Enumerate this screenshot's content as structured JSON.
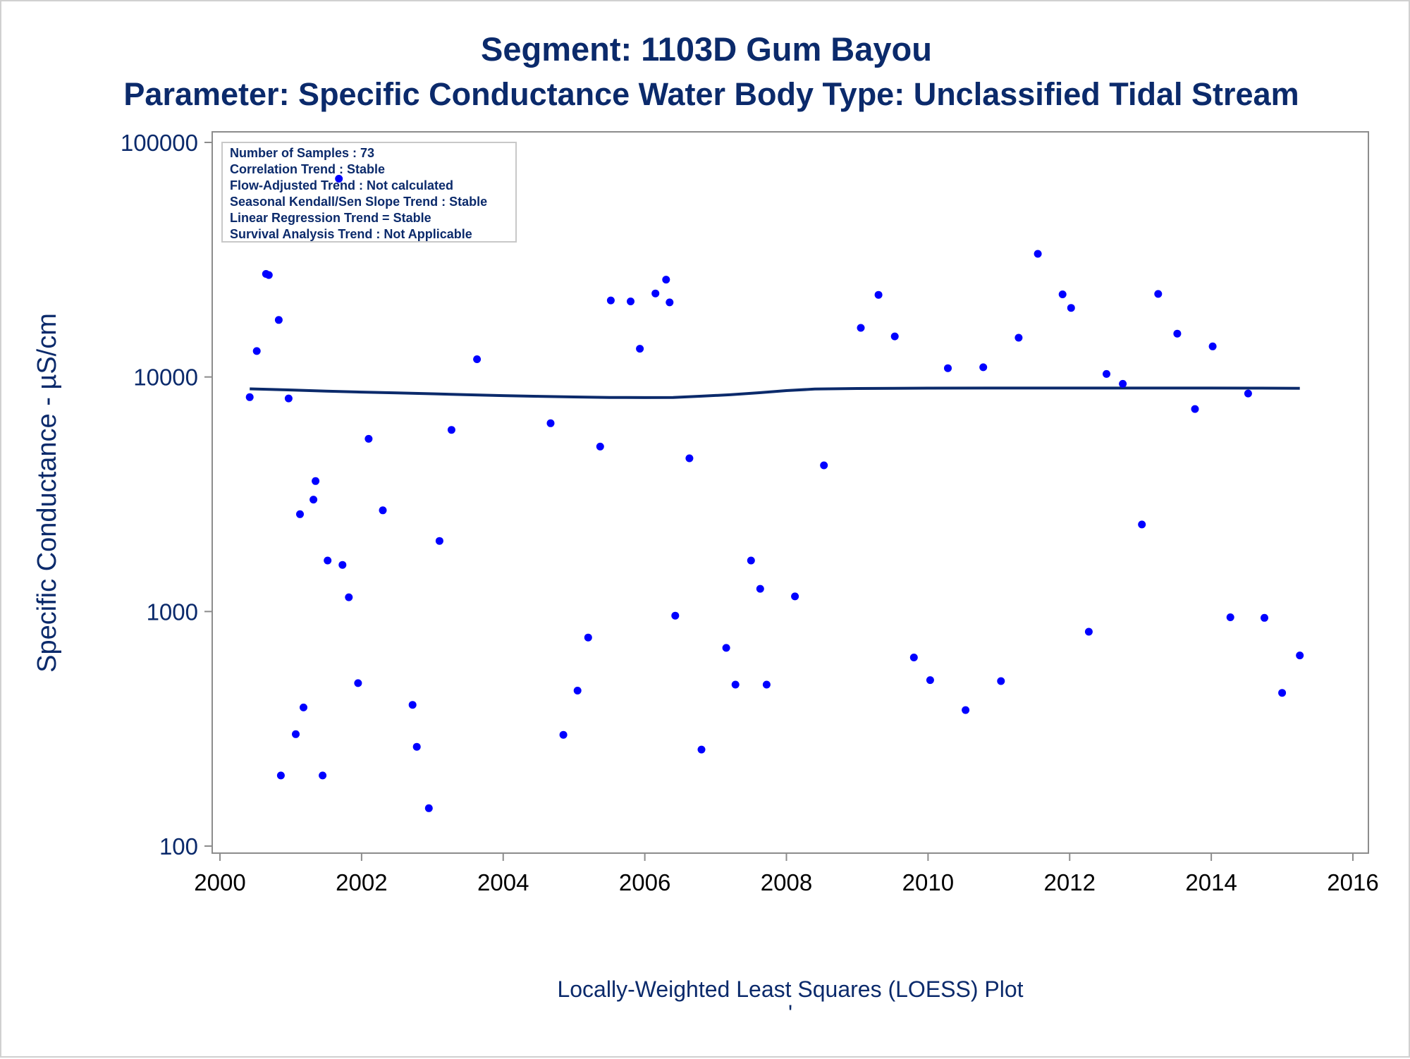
{
  "titles": {
    "line1": "Segment: 1103D  Gum Bayou",
    "line2": "Parameter: Specific Conductance   Water Body Type: Unclassified Tidal Stream"
  },
  "stats_box": {
    "lines": [
      "Number of Samples : 73",
      "Correlation Trend : Stable",
      "Flow-Adjusted Trend : Not calculated",
      "Seasonal Kendall/Sen Slope Trend : Stable",
      "Linear Regression Trend = Stable",
      "Survival Analysis Trend : Not Applicable"
    ]
  },
  "footnote": "Locally-Weighted Least Squares (LOESS) Plot",
  "footnote_mark": "'",
  "colors": {
    "title": "#0b2a6b",
    "points": "#0000ff",
    "loess": "#0b2a6b",
    "axis": "#8c8c8c"
  },
  "chart_data": {
    "type": "scatter",
    "ylabel": "Specific Conductance -  µS/cm",
    "xlabel": "",
    "xlim": [
      2000,
      2016
    ],
    "ylim": [
      100,
      100000
    ],
    "y_scale": "log",
    "x_ticks": [
      2000,
      2002,
      2004,
      2006,
      2008,
      2010,
      2012,
      2014,
      2016
    ],
    "y_ticks": [
      100,
      1000,
      10000,
      100000
    ],
    "grid": false,
    "series": [
      {
        "marker": "circle",
        "points": [
          {
            "x": 2000.42,
            "y": 8200
          },
          {
            "x": 2000.52,
            "y": 12900
          },
          {
            "x": 2000.65,
            "y": 27500
          },
          {
            "x": 2000.69,
            "y": 27200
          },
          {
            "x": 2000.83,
            "y": 17500
          },
          {
            "x": 2000.86,
            "y": 200
          },
          {
            "x": 2000.97,
            "y": 8100
          },
          {
            "x": 2001.07,
            "y": 300
          },
          {
            "x": 2001.13,
            "y": 2600
          },
          {
            "x": 2001.18,
            "y": 390
          },
          {
            "x": 2001.32,
            "y": 3000
          },
          {
            "x": 2001.35,
            "y": 3600
          },
          {
            "x": 2001.45,
            "y": 200
          },
          {
            "x": 2001.52,
            "y": 1650
          },
          {
            "x": 2001.68,
            "y": 70000
          },
          {
            "x": 2001.73,
            "y": 1580
          },
          {
            "x": 2001.82,
            "y": 1150
          },
          {
            "x": 2001.95,
            "y": 495
          },
          {
            "x": 2002.1,
            "y": 5450
          },
          {
            "x": 2002.3,
            "y": 2700
          },
          {
            "x": 2002.72,
            "y": 400
          },
          {
            "x": 2002.78,
            "y": 265
          },
          {
            "x": 2002.95,
            "y": 145
          },
          {
            "x": 2003.1,
            "y": 2000
          },
          {
            "x": 2003.27,
            "y": 5950
          },
          {
            "x": 2003.63,
            "y": 11900
          },
          {
            "x": 2004.67,
            "y": 6350
          },
          {
            "x": 2004.85,
            "y": 298
          },
          {
            "x": 2005.05,
            "y": 460
          },
          {
            "x": 2005.2,
            "y": 775
          },
          {
            "x": 2005.37,
            "y": 5050
          },
          {
            "x": 2005.52,
            "y": 21200
          },
          {
            "x": 2005.8,
            "y": 21000
          },
          {
            "x": 2005.93,
            "y": 13200
          },
          {
            "x": 2006.15,
            "y": 22700
          },
          {
            "x": 2006.3,
            "y": 26000
          },
          {
            "x": 2006.35,
            "y": 20800
          },
          {
            "x": 2006.43,
            "y": 960
          },
          {
            "x": 2006.63,
            "y": 4500
          },
          {
            "x": 2006.8,
            "y": 258
          },
          {
            "x": 2007.15,
            "y": 700
          },
          {
            "x": 2007.28,
            "y": 488
          },
          {
            "x": 2007.5,
            "y": 1650
          },
          {
            "x": 2007.63,
            "y": 1250
          },
          {
            "x": 2007.72,
            "y": 488
          },
          {
            "x": 2008.12,
            "y": 1160
          },
          {
            "x": 2008.53,
            "y": 4200
          },
          {
            "x": 2009.05,
            "y": 16200
          },
          {
            "x": 2009.3,
            "y": 22400
          },
          {
            "x": 2009.53,
            "y": 14900
          },
          {
            "x": 2009.8,
            "y": 637
          },
          {
            "x": 2010.03,
            "y": 510
          },
          {
            "x": 2010.28,
            "y": 10900
          },
          {
            "x": 2010.53,
            "y": 380
          },
          {
            "x": 2010.78,
            "y": 11000
          },
          {
            "x": 2011.03,
            "y": 505
          },
          {
            "x": 2011.28,
            "y": 14700
          },
          {
            "x": 2011.55,
            "y": 33500
          },
          {
            "x": 2011.9,
            "y": 22500
          },
          {
            "x": 2012.02,
            "y": 19700
          },
          {
            "x": 2012.27,
            "y": 820
          },
          {
            "x": 2012.52,
            "y": 10300
          },
          {
            "x": 2012.75,
            "y": 9350
          },
          {
            "x": 2013.02,
            "y": 2350
          },
          {
            "x": 2013.25,
            "y": 22600
          },
          {
            "x": 2013.52,
            "y": 15300
          },
          {
            "x": 2013.77,
            "y": 7300
          },
          {
            "x": 2014.02,
            "y": 13500
          },
          {
            "x": 2014.27,
            "y": 945
          },
          {
            "x": 2014.52,
            "y": 8500
          },
          {
            "x": 2014.75,
            "y": 940
          },
          {
            "x": 2015.0,
            "y": 450
          },
          {
            "x": 2015.25,
            "y": 650
          }
        ]
      },
      {
        "marker": "line",
        "points": [
          {
            "x": 2000.42,
            "y": 8900
          },
          {
            "x": 2000.7,
            "y": 8850
          },
          {
            "x": 2001.0,
            "y": 8800
          },
          {
            "x": 2001.5,
            "y": 8700
          },
          {
            "x": 2002.0,
            "y": 8620
          },
          {
            "x": 2002.5,
            "y": 8550
          },
          {
            "x": 2003.0,
            "y": 8480
          },
          {
            "x": 2003.5,
            "y": 8400
          },
          {
            "x": 2004.0,
            "y": 8330
          },
          {
            "x": 2004.5,
            "y": 8270
          },
          {
            "x": 2005.0,
            "y": 8220
          },
          {
            "x": 2005.5,
            "y": 8180
          },
          {
            "x": 2006.0,
            "y": 8170
          },
          {
            "x": 2006.4,
            "y": 8180
          },
          {
            "x": 2006.8,
            "y": 8280
          },
          {
            "x": 2007.2,
            "y": 8400
          },
          {
            "x": 2007.6,
            "y": 8560
          },
          {
            "x": 2008.0,
            "y": 8750
          },
          {
            "x": 2008.4,
            "y": 8880
          },
          {
            "x": 2009.0,
            "y": 8930
          },
          {
            "x": 2010.0,
            "y": 8960
          },
          {
            "x": 2011.0,
            "y": 8970
          },
          {
            "x": 2012.0,
            "y": 8970
          },
          {
            "x": 2013.0,
            "y": 8970
          },
          {
            "x": 2014.0,
            "y": 8970
          },
          {
            "x": 2014.7,
            "y": 8960
          },
          {
            "x": 2015.25,
            "y": 8950
          }
        ]
      }
    ]
  }
}
